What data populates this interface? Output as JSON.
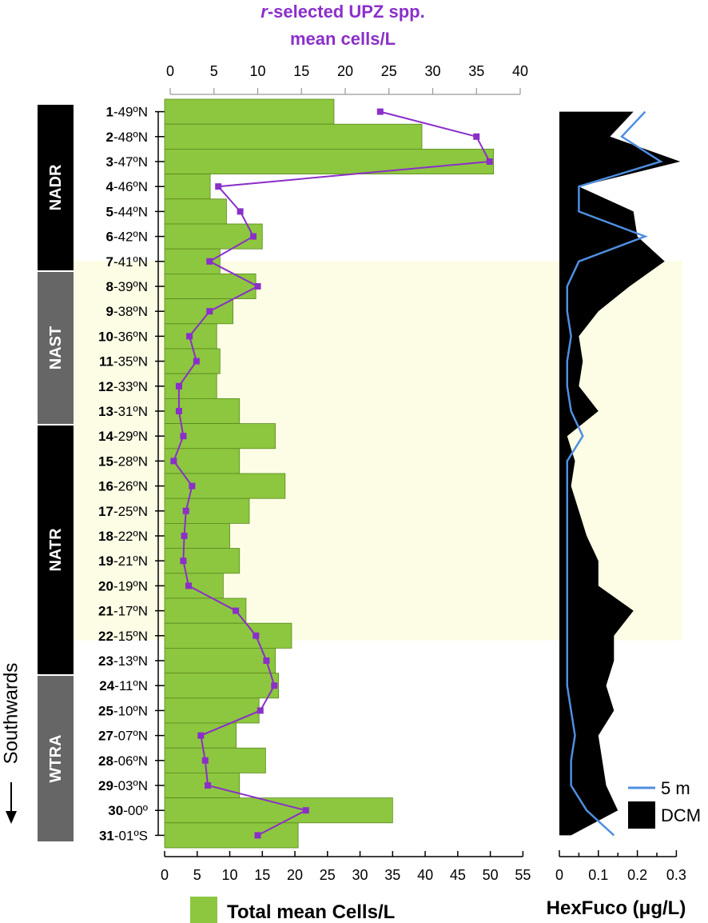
{
  "chart_data": {
    "type": "bar",
    "orientation": "horizontal",
    "title_top": {
      "prefix_italic": "r",
      "rest": "-selected UPZ spp.",
      "line2": "mean cells/L"
    },
    "stations": [
      {
        "num": "1",
        "lat": "-49ºN"
      },
      {
        "num": "2",
        "lat": "-48ºN"
      },
      {
        "num": "3",
        "lat": "-47ºN"
      },
      {
        "num": "4",
        "lat": "-46ºN"
      },
      {
        "num": "5",
        "lat": "-44ºN"
      },
      {
        "num": "6",
        "lat": "-42ºN"
      },
      {
        "num": "7",
        "lat": "-41ºN"
      },
      {
        "num": "8",
        "lat": "-39ºN"
      },
      {
        "num": "9",
        "lat": "-38ºN"
      },
      {
        "num": "10",
        "lat": "-36ºN"
      },
      {
        "num": "11",
        "lat": "-35ºN"
      },
      {
        "num": "12",
        "lat": "-33ºN"
      },
      {
        "num": "13",
        "lat": "-31ºN"
      },
      {
        "num": "14",
        "lat": "-29ºN"
      },
      {
        "num": "15",
        "lat": "-28ºN"
      },
      {
        "num": "16",
        "lat": "-26ºN"
      },
      {
        "num": "17",
        "lat": "-25ºN"
      },
      {
        "num": "18",
        "lat": "-22ºN"
      },
      {
        "num": "19",
        "lat": "-21ºN"
      },
      {
        "num": "20",
        "lat": "-19ºN"
      },
      {
        "num": "21",
        "lat": "-17ºN"
      },
      {
        "num": "22",
        "lat": "-15ºN"
      },
      {
        "num": "23",
        "lat": "-13ºN"
      },
      {
        "num": "24",
        "lat": "-11ºN"
      },
      {
        "num": "25",
        "lat": "-10ºN"
      },
      {
        "num": "27",
        "lat": "-07ºN"
      },
      {
        "num": "28",
        "lat": "-06ºN"
      },
      {
        "num": "29",
        "lat": "-03ºN"
      },
      {
        "num": "30",
        "lat": "-00º"
      },
      {
        "num": "31",
        "lat": "-01ºS"
      }
    ],
    "provinces": [
      {
        "label": "NADR",
        "first": 0,
        "last": 6,
        "color": "#000000"
      },
      {
        "label": "NAST",
        "first": 7,
        "last": 12,
        "color": "#666666"
      },
      {
        "label": "NATR",
        "first": 13,
        "last": 21,
        "color": "#000000"
      },
      {
        "label": "WTRA",
        "first": 22,
        "last": 29,
        "color": "#666666"
      }
    ],
    "highlight_band": {
      "first": 7,
      "last": 21,
      "color": "#fdfde6"
    },
    "side_label": "Southwards",
    "total_cells": {
      "name": "Total mean Cells/L",
      "color": "#8dc63f",
      "edge_color": "#5a8a1f",
      "xlim": [
        0,
        55
      ],
      "ticks": [
        0,
        5,
        10,
        15,
        20,
        25,
        30,
        35,
        40,
        45,
        50,
        55
      ],
      "values": [
        26,
        39.5,
        50.5,
        7,
        9.5,
        15,
        8.5,
        14,
        10.5,
        8,
        8.5,
        8,
        11.5,
        17,
        11.5,
        18.5,
        13,
        10,
        11.5,
        9,
        12.5,
        19.5,
        17,
        17.5,
        14.5,
        11,
        15.5,
        11.5,
        35,
        20.5
      ]
    },
    "rselected": {
      "name": "r-selected UPZ spp. mean cells/L",
      "color": "#8b2fc9",
      "xlim": [
        0,
        40
      ],
      "ticks": [
        0,
        5,
        10,
        15,
        20,
        25,
        30,
        35,
        40
      ],
      "values": [
        24,
        35,
        36.5,
        5.5,
        8,
        9.5,
        4.5,
        10,
        4.5,
        2.2,
        3,
        1,
        1,
        1.5,
        0.4,
        2.5,
        1.8,
        1.6,
        1.5,
        2.1,
        7.5,
        9.8,
        11,
        11.9,
        10.3,
        3.5,
        4,
        4.3,
        15.5,
        10
      ]
    },
    "hexfuco": {
      "label": "HexFuco (μg/L)",
      "xlim": [
        0,
        0.3
      ],
      "ticks": [
        "0",
        "0.1",
        "0.2",
        "0.3"
      ],
      "tick_values": [
        0,
        0.1,
        0.2,
        0.3
      ],
      "dcm": {
        "name": "DCM",
        "color": "#000000",
        "values": [
          0.19,
          0.13,
          0.31,
          0.05,
          0.19,
          0.2,
          0.27,
          0.18,
          0.1,
          0.05,
          0.06,
          0.05,
          0.1,
          0.02,
          0.04,
          0.03,
          0.05,
          0.07,
          0.1,
          0.1,
          0.19,
          0.14,
          0.14,
          0.12,
          0.14,
          0.1,
          0.11,
          0.12,
          0.15,
          0.03
        ]
      },
      "m5": {
        "name": "5 m",
        "color": "#4f8fe0",
        "values": [
          0.22,
          0.16,
          0.26,
          0.05,
          0.05,
          0.22,
          0.05,
          0.02,
          0.02,
          0.03,
          0.02,
          0.02,
          0.03,
          0.06,
          0.02,
          0.02,
          0.02,
          0.02,
          0.02,
          0.02,
          0.02,
          0.02,
          0.02,
          0.02,
          0.03,
          0.04,
          0.03,
          0.03,
          0.07,
          0.14
        ]
      }
    }
  }
}
